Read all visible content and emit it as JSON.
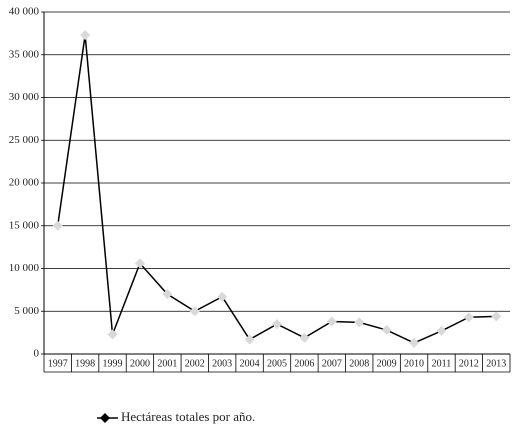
{
  "chart_data": {
    "type": "line",
    "categories": [
      "1997",
      "1998",
      "1999",
      "2000",
      "2001",
      "2002",
      "2003",
      "2004",
      "2005",
      "2006",
      "2007",
      "2008",
      "2009",
      "2010",
      "2011",
      "2012",
      "2013"
    ],
    "series": [
      {
        "name": "Hectáreas totales por año.",
        "color": "#000000",
        "values": [
          15000,
          37300,
          2300,
          10600,
          7000,
          5000,
          6700,
          1700,
          3500,
          1900,
          3800,
          3700,
          2800,
          1300,
          2700,
          4300,
          4400
        ]
      }
    ],
    "marker_color": "#d9d9d9",
    "ylim": [
      0,
      40000
    ],
    "yticks": [
      0,
      {
        "value": 5000,
        "label": "5 000"
      },
      {
        "value": 10000,
        "label": "10 000"
      },
      {
        "value": 15000,
        "label": "15 000"
      },
      {
        "value": 20000,
        "label": "20 000"
      },
      {
        "value": 25000,
        "label": "25 000"
      },
      {
        "value": 30000,
        "label": "30 000"
      },
      {
        "value": 35000,
        "label": "35 000"
      },
      {
        "value": 40000,
        "label": "40 000"
      }
    ],
    "grid": true,
    "legend": "bottom"
  }
}
